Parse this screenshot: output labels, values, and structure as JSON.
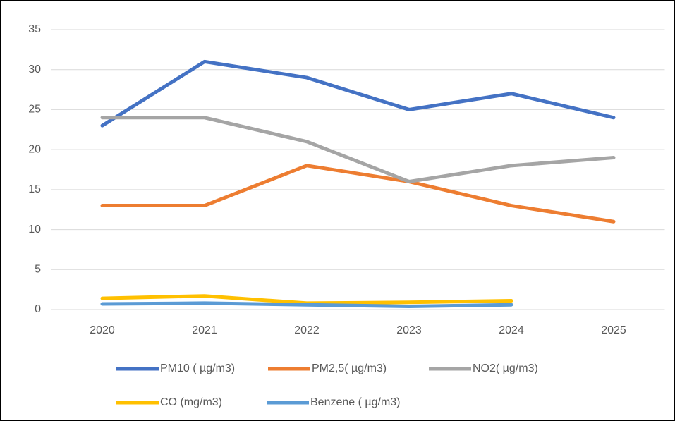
{
  "chart_data": {
    "type": "line",
    "categories": [
      "2020",
      "2021",
      "2022",
      "2023",
      "2024",
      "2025"
    ],
    "series": [
      {
        "name": "PM10 ( µg/m3)",
        "color": "#4472c4",
        "values": [
          23,
          31,
          29,
          25,
          27,
          24
        ]
      },
      {
        "name": "PM2,5( µg/m3)",
        "color": "#ed7d31",
        "values": [
          13,
          13,
          18,
          16,
          13,
          11
        ]
      },
      {
        "name": "NO2( µg/m3)",
        "color": "#a5a5a5",
        "values": [
          24,
          24,
          21,
          16,
          18,
          19
        ]
      },
      {
        "name": "CO (mg/m3)",
        "color": "#ffc000",
        "values": [
          1.4,
          1.7,
          0.8,
          0.9,
          1.1,
          null
        ]
      },
      {
        "name": "Benzene ( µg/m3)",
        "color": "#5b9bd5",
        "values": [
          0.7,
          0.8,
          0.6,
          0.4,
          0.6,
          null
        ]
      }
    ],
    "ylim": [
      0,
      35
    ],
    "yticks": [
      0,
      5,
      10,
      15,
      20,
      25,
      30,
      35
    ],
    "grid": true,
    "legend": "bottom"
  }
}
